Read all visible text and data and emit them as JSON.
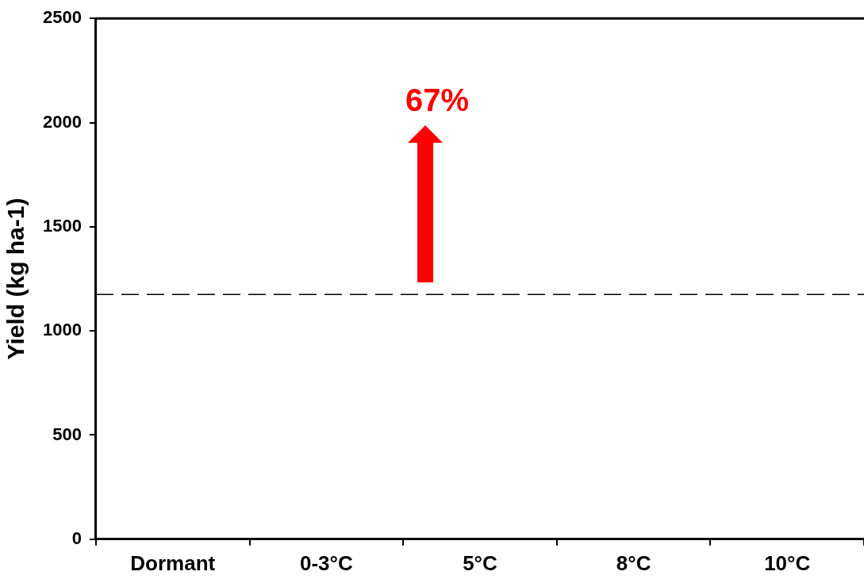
{
  "chart_data": {
    "type": "bar",
    "ylabel": "Yield (kg ha-1)",
    "categories": [
      "Dormant",
      "0-3°C",
      "5°C",
      "8°C",
      "10°C"
    ],
    "values": [
      null,
      null,
      null,
      null,
      null
    ],
    "ylim": [
      0,
      2500
    ],
    "yticks": [
      0,
      500,
      1000,
      1500,
      2000,
      2500
    ],
    "ref_lines": [
      {
        "axis": "y",
        "value": 1175,
        "line_style": "dashed",
        "color": "#000000"
      }
    ],
    "annotations": [
      "67%"
    ],
    "grid": false,
    "legend": false
  }
}
